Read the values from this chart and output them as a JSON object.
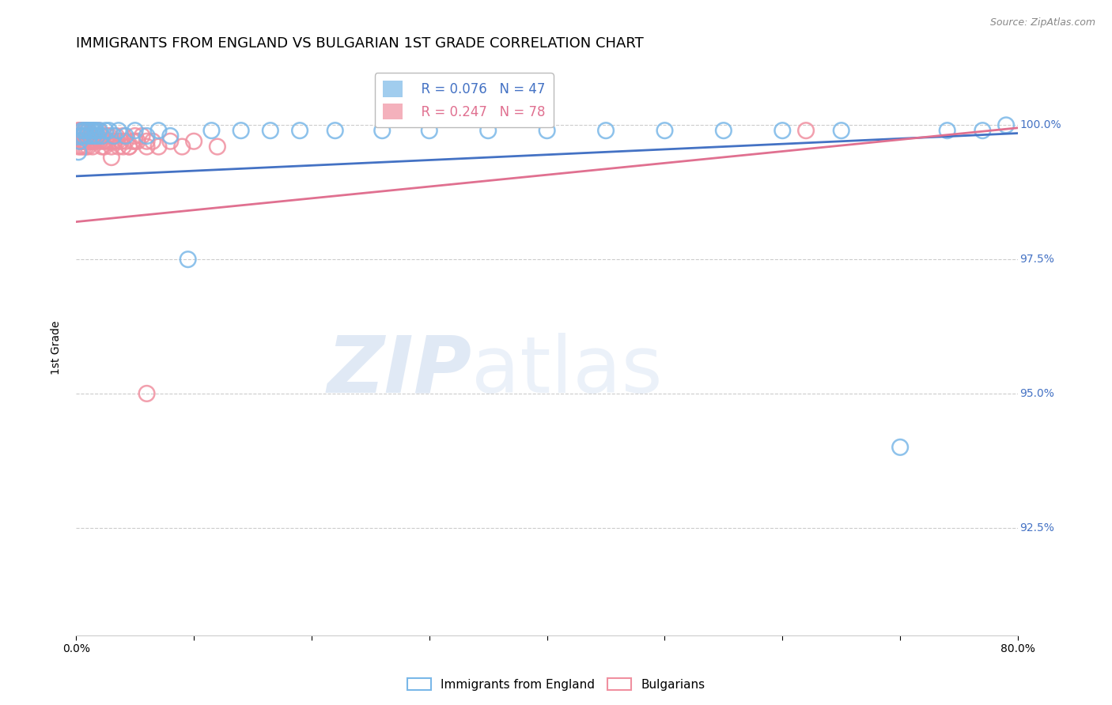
{
  "title": "IMMIGRANTS FROM ENGLAND VS BULGARIAN 1ST GRADE CORRELATION CHART",
  "source": "Source: ZipAtlas.com",
  "ylabel": "1st Grade",
  "xlim": [
    0.0,
    0.8
  ],
  "ylim": [
    0.905,
    1.012
  ],
  "yticks": [
    1.0,
    0.975,
    0.95,
    0.925
  ],
  "ytick_labels": [
    "100.0%",
    "97.5%",
    "95.0%",
    "92.5%"
  ],
  "blue_color": "#7ab8e8",
  "pink_color": "#f090a0",
  "blue_line_color": "#4472c4",
  "pink_line_color": "#e07090",
  "legend_blue_R": "R = 0.076",
  "legend_blue_N": "N = 47",
  "legend_pink_R": "R = 0.247",
  "legend_pink_N": "N = 78",
  "blue_scatter_x": [
    0.002,
    0.003,
    0.004,
    0.005,
    0.006,
    0.007,
    0.008,
    0.009,
    0.01,
    0.011,
    0.012,
    0.013,
    0.014,
    0.015,
    0.016,
    0.017,
    0.018,
    0.02,
    0.022,
    0.025,
    0.028,
    0.032,
    0.036,
    0.042,
    0.05,
    0.06,
    0.07,
    0.08,
    0.095,
    0.115,
    0.14,
    0.165,
    0.19,
    0.22,
    0.26,
    0.3,
    0.35,
    0.4,
    0.45,
    0.5,
    0.55,
    0.6,
    0.65,
    0.7,
    0.74,
    0.77,
    0.79
  ],
  "blue_scatter_y": [
    0.995,
    0.997,
    0.998,
    0.999,
    0.998,
    0.999,
    0.999,
    0.998,
    0.999,
    0.999,
    0.998,
    0.999,
    0.999,
    0.998,
    0.999,
    0.999,
    0.998,
    0.999,
    0.998,
    0.999,
    0.999,
    0.998,
    0.999,
    0.998,
    0.999,
    0.998,
    0.999,
    0.998,
    0.975,
    0.999,
    0.999,
    0.999,
    0.999,
    0.999,
    0.999,
    0.999,
    0.999,
    0.999,
    0.999,
    0.999,
    0.999,
    0.999,
    0.999,
    0.94,
    0.999,
    0.999,
    1.0
  ],
  "pink_scatter_x": [
    0.002,
    0.003,
    0.004,
    0.005,
    0.006,
    0.007,
    0.008,
    0.009,
    0.01,
    0.011,
    0.012,
    0.013,
    0.014,
    0.015,
    0.016,
    0.017,
    0.018,
    0.019,
    0.02,
    0.021,
    0.022,
    0.023,
    0.024,
    0.025,
    0.026,
    0.027,
    0.028,
    0.03,
    0.032,
    0.034,
    0.036,
    0.038,
    0.04,
    0.042,
    0.045,
    0.048,
    0.052,
    0.056,
    0.06,
    0.065,
    0.07,
    0.08,
    0.09,
    0.1,
    0.12,
    0.03,
    0.035,
    0.04,
    0.045,
    0.05,
    0.003,
    0.004,
    0.005,
    0.006,
    0.007,
    0.008,
    0.009,
    0.01,
    0.011,
    0.012,
    0.013,
    0.014,
    0.015,
    0.003,
    0.004,
    0.005,
    0.006,
    0.007,
    0.05,
    0.06,
    0.002,
    0.003,
    0.004,
    0.005,
    0.006,
    0.06,
    0.03,
    0.62
  ],
  "pink_scatter_y": [
    0.999,
    0.999,
    0.999,
    0.999,
    0.998,
    0.999,
    0.999,
    0.998,
    0.999,
    0.998,
    0.998,
    0.997,
    0.997,
    0.999,
    0.998,
    0.997,
    0.998,
    0.999,
    0.997,
    0.998,
    0.996,
    0.997,
    0.996,
    0.997,
    0.998,
    0.997,
    0.998,
    0.996,
    0.997,
    0.998,
    0.996,
    0.997,
    0.996,
    0.997,
    0.996,
    0.997,
    0.997,
    0.998,
    0.996,
    0.997,
    0.996,
    0.997,
    0.996,
    0.997,
    0.996,
    0.997,
    0.997,
    0.998,
    0.996,
    0.997,
    0.998,
    0.997,
    0.997,
    0.998,
    0.997,
    0.996,
    0.997,
    0.996,
    0.997,
    0.997,
    0.998,
    0.996,
    0.997,
    0.998,
    0.997,
    0.998,
    0.996,
    0.997,
    0.998,
    0.997,
    0.996,
    0.997,
    0.996,
    0.998,
    0.997,
    0.95,
    0.994,
    0.999
  ],
  "watermark_zip": "ZIP",
  "watermark_atlas": "atlas",
  "background_color": "#ffffff",
  "grid_color": "#cccccc",
  "right_label_color": "#4472c4",
  "title_fontsize": 13,
  "axis_label_fontsize": 10,
  "tick_fontsize": 10,
  "blue_trend_x": [
    0.0,
    0.8
  ],
  "blue_trend_y": [
    0.9905,
    0.9985
  ],
  "pink_trend_x": [
    0.0,
    0.8
  ],
  "pink_trend_y": [
    0.982,
    0.9995
  ]
}
